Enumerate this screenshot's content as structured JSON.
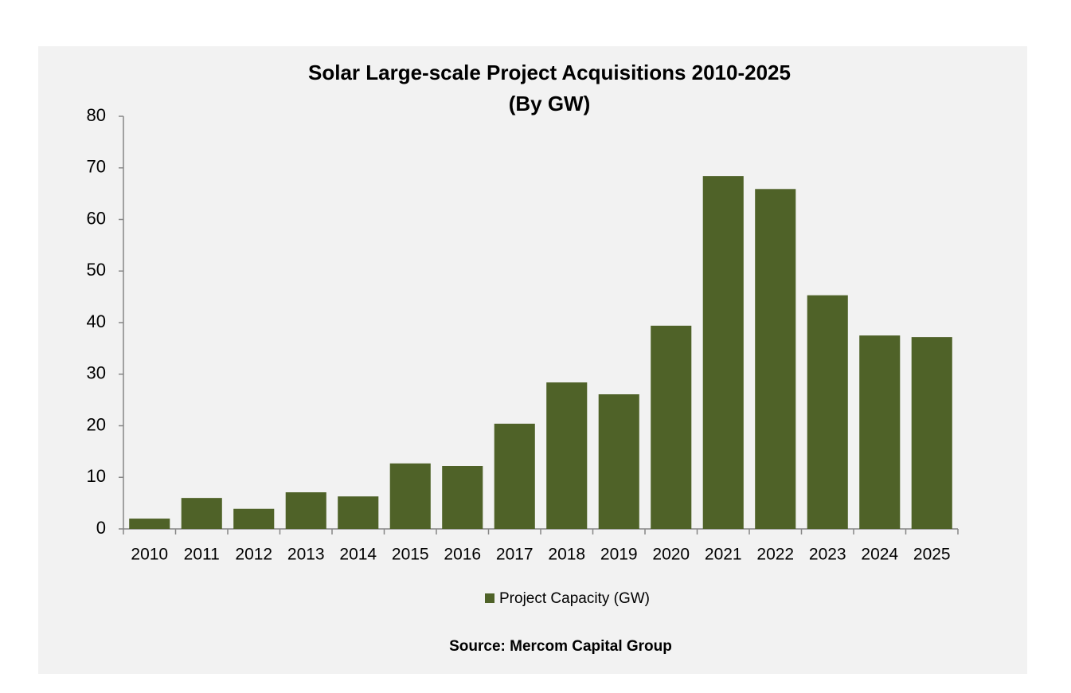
{
  "chart_data": {
    "type": "bar",
    "title": "Solar Large-scale Project Acquisitions 2010-2025",
    "subtitle": "(By GW)",
    "categories": [
      "2010",
      "2011",
      "2012",
      "2013",
      "2014",
      "2015",
      "2016",
      "2017",
      "2018",
      "2019",
      "2020",
      "2021",
      "2022",
      "2023",
      "2024",
      "2025"
    ],
    "series": [
      {
        "name": "Project Capacity (GW)",
        "color": "#4f6228",
        "values": [
          2.0,
          6.0,
          3.9,
          7.1,
          6.3,
          12.7,
          12.2,
          20.4,
          28.4,
          26.1,
          39.4,
          68.4,
          65.9,
          45.3,
          37.5,
          37.2
        ]
      }
    ],
    "ylim": [
      0,
      80
    ],
    "yticks": [
      0,
      10,
      20,
      30,
      40,
      50,
      60,
      70,
      80
    ],
    "grid": false,
    "legend": "bottom",
    "annotation": "Source: Mercom Capital Group"
  }
}
